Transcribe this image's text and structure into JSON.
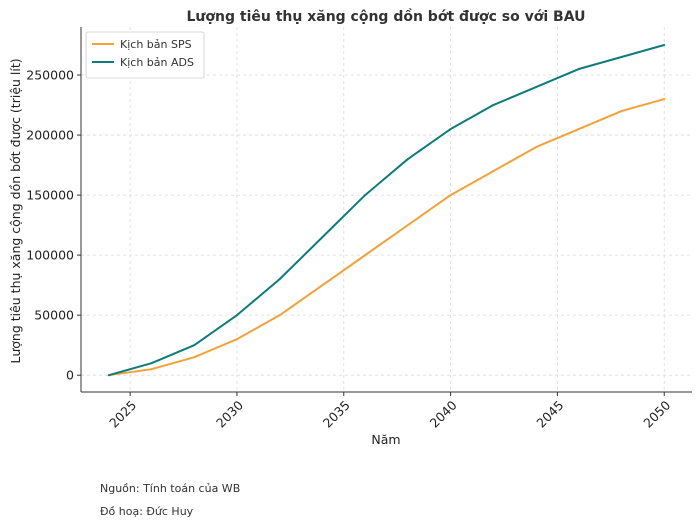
{
  "chart_data": {
    "type": "line",
    "title": "Lượng tiêu thụ xăng cộng dồn bớt được so với BAU",
    "xlabel": "Năm",
    "ylabel": "Lượng tiêu thụ xăng cộng dồn bớt được (triệu lít)",
    "xlim": [
      2022.7,
      2051.3
    ],
    "ylim": [
      -14000,
      290000
    ],
    "x_ticks": [
      2025,
      2030,
      2035,
      2040,
      2045,
      2050
    ],
    "y_ticks": [
      0,
      50000,
      100000,
      150000,
      200000,
      250000
    ],
    "grid": true,
    "legend_position": "top-left",
    "x": [
      2024,
      2026,
      2028,
      2030,
      2032,
      2034,
      2036,
      2038,
      2040,
      2042,
      2044,
      2046,
      2048,
      2050
    ],
    "series": [
      {
        "name": "Kịch bản SPS",
        "color": "#f2a23a",
        "values": [
          0,
          5000,
          15000,
          30000,
          50000,
          75000,
          100000,
          125000,
          150000,
          170000,
          190000,
          205000,
          220000,
          230000
        ]
      },
      {
        "name": "Kịch bản ADS",
        "color": "#0e7c7b",
        "values": [
          0,
          10000,
          25000,
          50000,
          80000,
          115000,
          150000,
          180000,
          205000,
          225000,
          240000,
          255000,
          265000,
          275000
        ]
      }
    ]
  },
  "footer": {
    "source": "Nguồn: Tính toán của WB",
    "credit": "Đồ hoạ: Đức Huy"
  }
}
